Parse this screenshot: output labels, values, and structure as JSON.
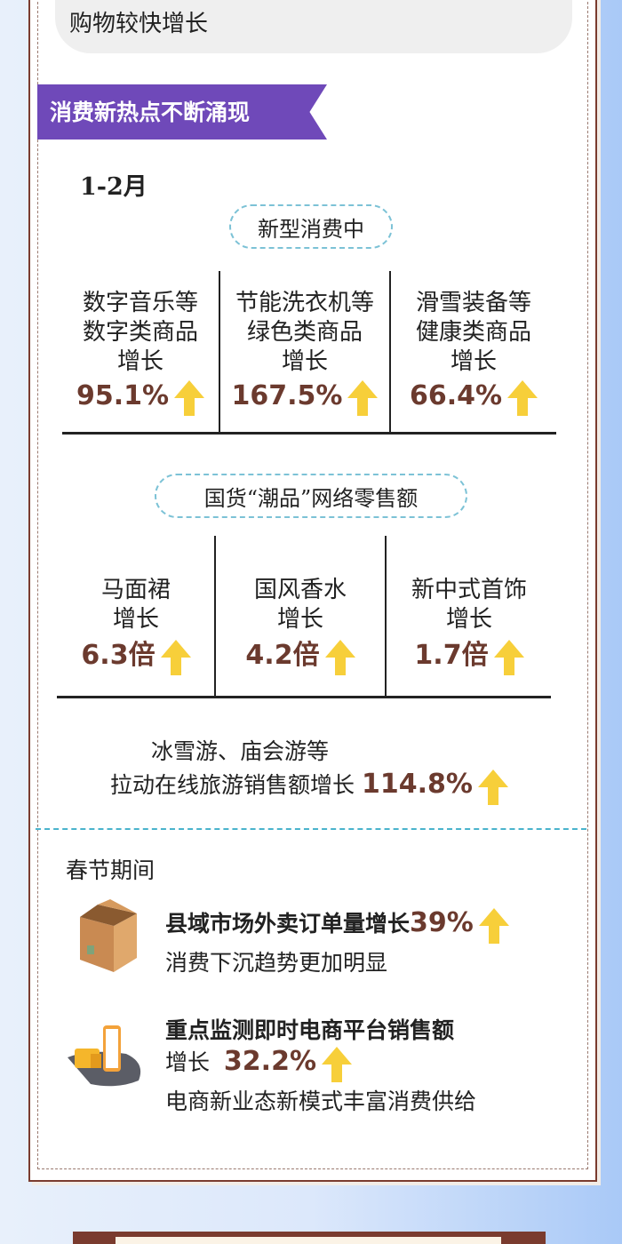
{
  "intro": {
    "tail_text": "购物较快增长"
  },
  "section": {
    "title": "消费新热点不断涌现",
    "accent": "#6f49b9"
  },
  "period1": "1-2月",
  "new_consumption": {
    "pill": "新型消费中",
    "items": [
      {
        "l1": "数字音乐等",
        "l2": "数字类商品",
        "l3": "增长",
        "value": "95.1%"
      },
      {
        "l1": "节能洗衣机等",
        "l2": "绿色类商品",
        "l3": "增长",
        "value": "167.5%"
      },
      {
        "l1": "滑雪装备等",
        "l2": "健康类商品",
        "l3": "增长",
        "value": "66.4%"
      }
    ]
  },
  "guochao": {
    "pill": "国货“潮品”网络零售额",
    "items": [
      {
        "l1": "马面裙",
        "l2": "增长",
        "value": "6.3倍"
      },
      {
        "l1": "国风香水",
        "l2": "增长",
        "value": "4.2倍"
      },
      {
        "l1": "新中式首饰",
        "l2": "增长",
        "value": "1.7倍"
      }
    ]
  },
  "travel": {
    "l1": "冰雪游、庙会游等",
    "l2": "拉动在线旅游销售额增长",
    "value": "114.8%"
  },
  "spring": {
    "title": "春节期间",
    "items": [
      {
        "icon": "box-icon",
        "head": "县域市场外卖订单量增长",
        "value": "39%",
        "sub": "消费下沉趋势更加明显"
      },
      {
        "icon": "delivery-truck-phone-icon",
        "head": "重点监测即时电商平台销售额",
        "pre": "增长",
        "value": "32.2%",
        "sub": "电商新业态新模式丰富消费供给"
      }
    ]
  },
  "colors": {
    "value": "#6b3a2e",
    "arrow": "#f7cf3a",
    "border": "#7a3b2e",
    "dash": "#4ab3cc"
  }
}
